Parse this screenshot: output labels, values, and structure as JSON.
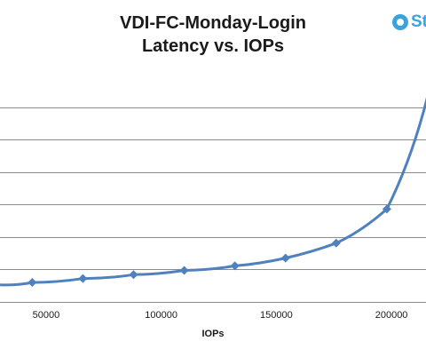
{
  "chart_title": {
    "line1": "VDI-FC-Monday-Login",
    "line2": "Latency vs. IOPs"
  },
  "logo": {
    "text": "St",
    "icon": "circle-logo-icon",
    "color": "#3aa3dc"
  },
  "chart_data": {
    "type": "line",
    "title": "VDI-FC-Monday-Login Latency vs. IOPs",
    "xlabel": "IOPs",
    "ylabel": "",
    "xlim": [
      30000,
      215000
    ],
    "ylim": [
      0,
      7
    ],
    "x_ticks": [
      50000,
      100000,
      150000,
      200000
    ],
    "y_gridlines": [
      1,
      2,
      3,
      4,
      5,
      6
    ],
    "grid": true,
    "series": [
      {
        "color": "#4f81bd",
        "marker": "diamond",
        "x": [
          44000,
          66000,
          88000,
          110000,
          132000,
          154000,
          176000,
          198000
        ],
        "y": [
          0.6,
          0.72,
          0.84,
          0.97,
          1.11,
          1.35,
          1.81,
          2.86
        ]
      }
    ]
  }
}
